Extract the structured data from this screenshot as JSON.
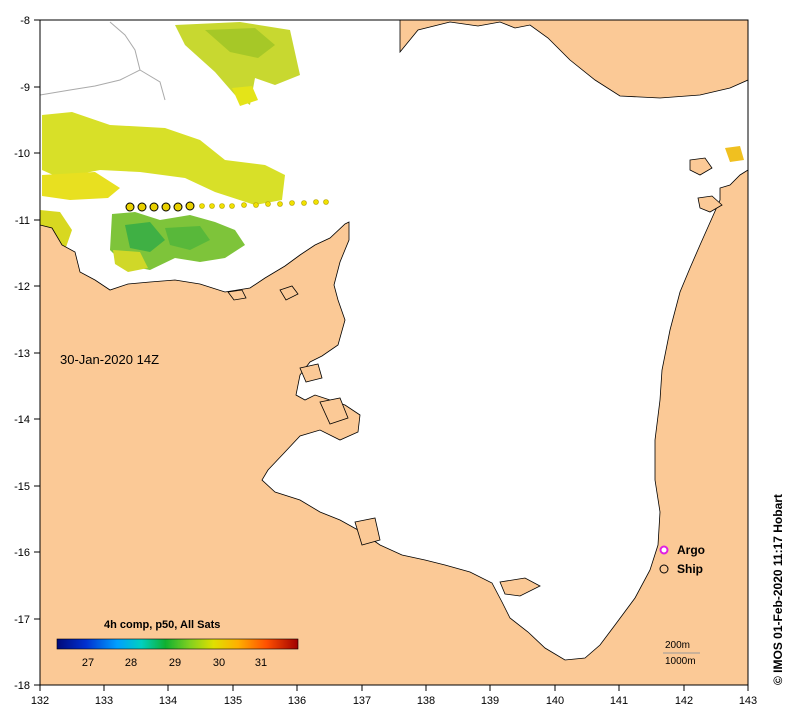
{
  "map": {
    "timestamp": "30-Jan-2020 14Z",
    "credit": "© IMOS 01-Feb-2020 11:17 Hobart",
    "x_axis": {
      "ticks": [
        "132",
        "133",
        "134",
        "135",
        "136",
        "137",
        "138",
        "139",
        "140",
        "141",
        "142",
        "143"
      ]
    },
    "y_axis": {
      "ticks": [
        "-8",
        "-9",
        "-10",
        "-11",
        "-12",
        "-13",
        "-14",
        "-15",
        "-16",
        "-17",
        "-18"
      ]
    },
    "legend": {
      "argo": "Argo",
      "ship": "Ship"
    },
    "colorbar": {
      "title": "4h comp, p50, All Sats",
      "ticks": [
        "27",
        "28",
        "29",
        "30",
        "31"
      ]
    },
    "scale": {
      "contour_200": "200m",
      "contour_1000": "1000m"
    },
    "colors": {
      "land": "#fbc996",
      "sea": "#ffffff",
      "coast": "#000000"
    }
  }
}
